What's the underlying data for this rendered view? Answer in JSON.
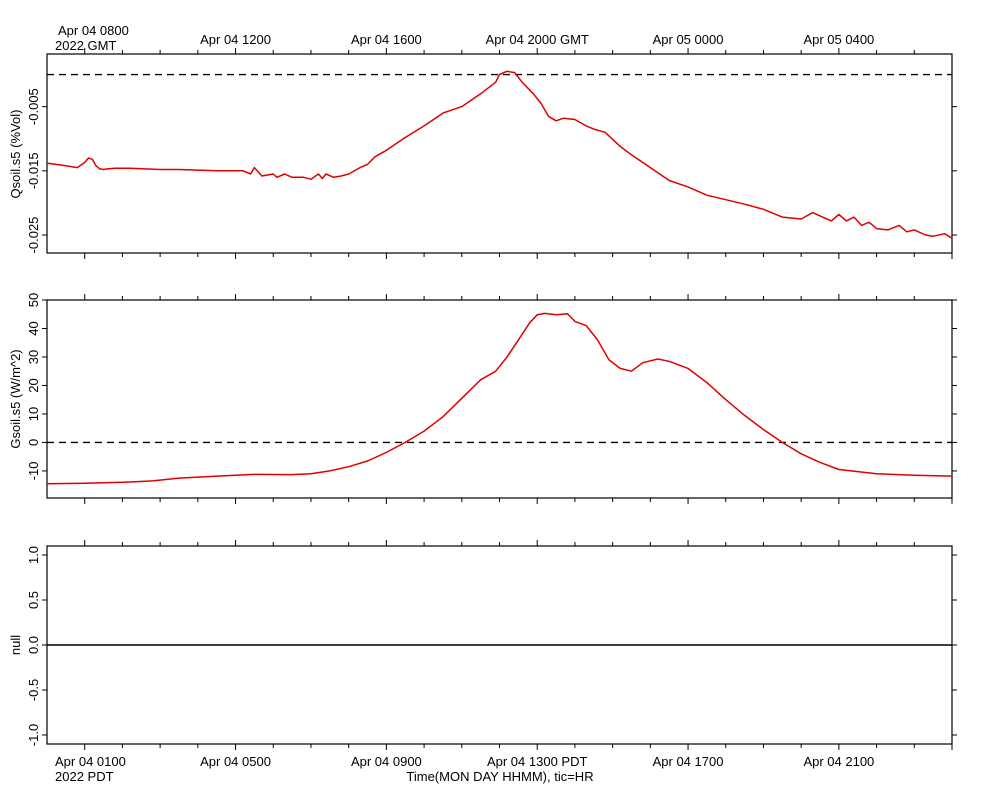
{
  "colors": {
    "series": "#e00000",
    "axis": "#000000",
    "zero_line": "#000000",
    "background": "#ffffff"
  },
  "top_axis": {
    "tick_labels": [
      "Apr 04 0800",
      "Apr 04 1200",
      "Apr 04 1600",
      "Apr 04 2000 GMT",
      "Apr 05 0000",
      "Apr 05 0400"
    ],
    "year_label": "2022 GMT"
  },
  "bottom_axis": {
    "tick_labels": [
      "Apr 04 0100",
      "Apr 04 0500",
      "Apr 04 0900",
      "Apr 04 1300 PDT",
      "Apr 04 1700",
      "Apr 04 2100"
    ],
    "year_label": "2022 PDT",
    "title": "Time(MON DAY HHMM), tic=HR"
  },
  "chart_data": [
    {
      "type": "line",
      "ylabel": "Qsoil.s5 (%Vol)",
      "x_unit": "hours after Apr 04 0000 PDT",
      "xlim": [
        0.0,
        24.0
      ],
      "ylim": [
        -0.0278,
        0.0032
      ],
      "yticks": [
        -0.025,
        -0.015,
        -0.005
      ],
      "ytick_labels": [
        "-0.025",
        "-0.015",
        "-0.005"
      ],
      "reference_line": {
        "y": 0.0,
        "style": "dashed"
      },
      "series": [
        {
          "values_x": [
            0.0,
            0.5,
            0.8,
            1.0,
            1.1,
            1.2,
            1.3,
            1.4,
            1.5,
            1.6,
            1.8,
            2.2,
            3.0,
            3.5,
            4.5,
            5.2,
            5.4,
            5.5,
            5.7,
            6.0,
            6.1,
            6.3,
            6.5,
            6.8,
            7.0,
            7.2,
            7.3,
            7.4,
            7.6,
            7.8,
            8.0,
            8.3,
            8.5,
            8.7,
            9.0,
            9.5,
            10.0,
            10.5,
            11.0,
            11.5,
            11.9,
            12.0,
            12.2,
            12.4,
            12.6,
            12.9,
            13.1,
            13.3,
            13.5,
            13.7,
            14.0,
            14.3,
            14.5,
            14.8,
            15.2,
            15.5,
            16.0,
            16.5,
            17.0,
            17.5,
            18.0,
            18.5,
            19.0,
            19.5,
            20.0,
            20.3,
            20.8,
            21.0,
            21.2,
            21.4,
            21.6,
            21.8,
            22.0,
            22.3,
            22.6,
            22.8,
            23.0,
            23.3,
            23.5,
            23.8,
            24.0
          ],
          "values": [
            -0.0138,
            -0.0142,
            -0.0145,
            -0.0137,
            -0.013,
            -0.0132,
            -0.0142,
            -0.0147,
            -0.0148,
            -0.0147,
            -0.0146,
            -0.0146,
            -0.0148,
            -0.0148,
            -0.015,
            -0.015,
            -0.0155,
            -0.0145,
            -0.0158,
            -0.0155,
            -0.016,
            -0.0155,
            -0.016,
            -0.016,
            -0.0163,
            -0.0155,
            -0.0162,
            -0.0155,
            -0.016,
            -0.0158,
            -0.0155,
            -0.0145,
            -0.014,
            -0.0128,
            -0.0118,
            -0.0098,
            -0.008,
            -0.006,
            -0.005,
            -0.003,
            -0.0012,
            0.0,
            0.0005,
            0.0003,
            -0.0012,
            -0.003,
            -0.0045,
            -0.0065,
            -0.0072,
            -0.0068,
            -0.007,
            -0.008,
            -0.0085,
            -0.009,
            -0.0112,
            -0.0125,
            -0.0145,
            -0.0165,
            -0.0175,
            -0.0188,
            -0.0195,
            -0.0202,
            -0.021,
            -0.0222,
            -0.0225,
            -0.0215,
            -0.0228,
            -0.0218,
            -0.0228,
            -0.0222,
            -0.0235,
            -0.023,
            -0.024,
            -0.0242,
            -0.0235,
            -0.0245,
            -0.0242,
            -0.025,
            -0.0252,
            -0.0248,
            -0.0255
          ]
        }
      ]
    },
    {
      "type": "line",
      "ylabel": "Gsoil.s5 (W/m^2)",
      "x_unit": "hours after Apr 04 0000 PDT",
      "xlim": [
        0.0,
        24.0
      ],
      "ylim": [
        -19.5,
        50.0
      ],
      "yticks": [
        -10,
        0,
        10,
        20,
        30,
        40,
        50
      ],
      "ytick_labels": [
        "-10",
        "0",
        "10",
        "20",
        "30",
        "40",
        "50"
      ],
      "reference_line": {
        "y": 0.0,
        "style": "dashed"
      },
      "series": [
        {
          "values_x": [
            0.0,
            1.0,
            2.0,
            2.8,
            3.5,
            4.5,
            5.5,
            6.5,
            7.0,
            7.5,
            8.0,
            8.5,
            9.0,
            9.5,
            10.0,
            10.5,
            11.0,
            11.5,
            11.9,
            12.2,
            12.5,
            12.8,
            13.0,
            13.2,
            13.5,
            13.8,
            14.0,
            14.3,
            14.6,
            14.9,
            15.2,
            15.5,
            15.8,
            16.2,
            16.5,
            17.0,
            17.5,
            18.0,
            18.5,
            19.0,
            19.5,
            20.0,
            20.5,
            21.0,
            22.0,
            23.0,
            24.0
          ],
          "values": [
            -14.5,
            -14.3,
            -14.0,
            -13.5,
            -12.5,
            -11.8,
            -11.2,
            -11.3,
            -11.0,
            -10.0,
            -8.5,
            -6.5,
            -3.5,
            0.0,
            4.0,
            9.0,
            15.5,
            22.0,
            25.0,
            30.0,
            36.0,
            42.0,
            44.8,
            45.3,
            44.8,
            45.2,
            42.5,
            41.0,
            36.0,
            29.0,
            26.0,
            25.0,
            28.0,
            29.3,
            28.5,
            26.0,
            21.0,
            15.0,
            9.5,
            4.5,
            0.0,
            -4.0,
            -7.0,
            -9.5,
            -11.0,
            -11.5,
            -11.8
          ]
        }
      ]
    },
    {
      "type": "line",
      "ylabel": "null",
      "x_unit": "hours after Apr 04 0000 PDT",
      "xlim": [
        0.0,
        24.0
      ],
      "ylim": [
        -1.1,
        1.1
      ],
      "yticks": [
        -1.0,
        -0.5,
        0.0,
        0.5,
        1.0
      ],
      "ytick_labels": [
        "-1.0",
        "-0.5",
        "0.0",
        "0.5",
        "1.0"
      ],
      "reference_line": {
        "y": 0.0,
        "style": "solid"
      },
      "series": []
    }
  ]
}
